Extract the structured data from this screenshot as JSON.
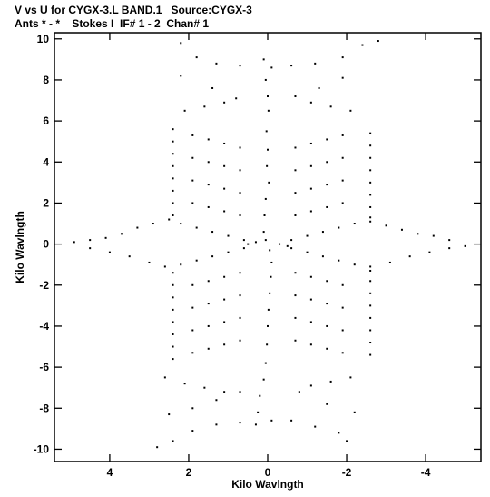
{
  "header": {
    "line1": "V vs U for CYGX-3.L BAND.1   Source:CYGX-3",
    "line2": "Ants * - *    Stokes I  IF# 1 - 2  Chan# 1"
  },
  "chart_data": {
    "type": "scatter",
    "title": "V vs U for CYGX-3.L BAND.1   Source:CYGX-3",
    "subtitle": "Ants * - *    Stokes I  IF# 1 - 2  Chan# 1",
    "xlabel": "Kilo Wavlngth",
    "ylabel": "Kilo Wavlngth",
    "xlim": [
      5.4,
      -5.4
    ],
    "ylim": [
      -10.6,
      10.3
    ],
    "x_reversed": true,
    "x_ticks": [
      4,
      2,
      0,
      -2,
      -4
    ],
    "x_tick_labels": [
      "4",
      "2",
      "0",
      "-2",
      "-4"
    ],
    "y_ticks": [
      10,
      8,
      6,
      4,
      2,
      0,
      -2,
      -4,
      -6,
      -8,
      -10
    ],
    "y_tick_labels": [
      "10",
      "8",
      "6",
      "4",
      "2",
      "0",
      "-2",
      "-4",
      "-6",
      "-8",
      "-10"
    ],
    "grid": false,
    "marker_color": "#000000",
    "series": [
      {
        "values": [
          [
            0.1,
            9.0
          ],
          [
            -0.1,
            8.6
          ],
          [
            0.05,
            8.0
          ],
          [
            0.0,
            7.2
          ],
          [
            -0.02,
            6.5
          ],
          [
            0.03,
            5.5
          ],
          [
            0.0,
            4.6
          ],
          [
            0.02,
            3.8
          ],
          [
            -0.03,
            3.0
          ],
          [
            0.05,
            2.2
          ],
          [
            0.08,
            1.4
          ],
          [
            0.1,
            0.6
          ],
          [
            0.05,
            0.2
          ],
          [
            -0.05,
            -0.3
          ],
          [
            -0.1,
            -0.9
          ],
          [
            -0.08,
            -1.6
          ],
          [
            -0.05,
            -2.4
          ],
          [
            -0.02,
            -3.2
          ],
          [
            0.0,
            -4.0
          ],
          [
            0.02,
            -4.9
          ],
          [
            0.05,
            -5.8
          ],
          [
            0.1,
            -6.6
          ],
          [
            0.2,
            -7.4
          ],
          [
            0.25,
            -8.2
          ],
          [
            0.3,
            -8.8
          ],
          [
            -0.1,
            -8.6
          ],
          [
            2.2,
            9.8
          ],
          [
            1.8,
            9.1
          ],
          [
            1.3,
            8.8
          ],
          [
            0.7,
            8.7
          ],
          [
            2.2,
            8.2
          ],
          [
            1.4,
            7.6
          ],
          [
            0.8,
            7.1
          ],
          [
            -0.6,
            8.7
          ],
          [
            -1.2,
            8.8
          ],
          [
            -1.9,
            9.1
          ],
          [
            -2.4,
            9.7
          ],
          [
            -2.8,
            9.9
          ],
          [
            -0.7,
            7.2
          ],
          [
            -1.3,
            7.6
          ],
          [
            -1.9,
            8.1
          ],
          [
            -2.0,
            -9.6
          ],
          [
            -1.8,
            -9.2
          ],
          [
            -1.2,
            -8.9
          ],
          [
            -0.6,
            -8.6
          ],
          [
            -2.2,
            -8.2
          ],
          [
            -1.5,
            -7.8
          ],
          [
            -0.8,
            -7.2
          ],
          [
            0.7,
            -8.7
          ],
          [
            1.3,
            -8.8
          ],
          [
            1.9,
            -9.1
          ],
          [
            2.4,
            -9.6
          ],
          [
            2.8,
            -9.9
          ],
          [
            0.7,
            -7.2
          ],
          [
            1.3,
            -7.6
          ],
          [
            1.9,
            -8.0
          ],
          [
            2.5,
            -8.3
          ],
          [
            4.9,
            0.1
          ],
          [
            4.5,
            0.2
          ],
          [
            4.1,
            0.3
          ],
          [
            3.7,
            0.5
          ],
          [
            3.3,
            0.8
          ],
          [
            2.9,
            1.0
          ],
          [
            2.5,
            1.2
          ],
          [
            4.5,
            -0.2
          ],
          [
            4.0,
            -0.4
          ],
          [
            3.5,
            -0.6
          ],
          [
            3.0,
            -0.9
          ],
          [
            2.6,
            -1.1
          ],
          [
            2.2,
            1.0
          ],
          [
            1.8,
            0.8
          ],
          [
            1.4,
            0.6
          ],
          [
            1.0,
            0.4
          ],
          [
            0.6,
            0.2
          ],
          [
            2.2,
            -1.0
          ],
          [
            1.8,
            -0.8
          ],
          [
            1.4,
            -0.6
          ],
          [
            1.0,
            -0.4
          ],
          [
            0.6,
            -0.2
          ],
          [
            -5.0,
            -0.1
          ],
          [
            -4.6,
            0.2
          ],
          [
            -4.2,
            0.4
          ],
          [
            -3.8,
            0.5
          ],
          [
            -3.4,
            0.7
          ],
          [
            -3.0,
            0.9
          ],
          [
            -2.6,
            1.1
          ],
          [
            -4.6,
            -0.2
          ],
          [
            -4.1,
            -0.4
          ],
          [
            -3.6,
            -0.6
          ],
          [
            -3.1,
            -0.9
          ],
          [
            -2.6,
            -1.1
          ],
          [
            -2.2,
            1.0
          ],
          [
            -1.8,
            0.8
          ],
          [
            -1.4,
            0.6
          ],
          [
            -1.0,
            0.4
          ],
          [
            -0.6,
            0.2
          ],
          [
            -2.2,
            -1.0
          ],
          [
            -1.8,
            -0.8
          ],
          [
            -1.4,
            -0.6
          ],
          [
            -1.0,
            -0.4
          ],
          [
            -0.6,
            -0.2
          ],
          [
            0.5,
            0.0
          ],
          [
            0.3,
            0.1
          ],
          [
            -0.3,
            0.0
          ],
          [
            -0.5,
            -0.1
          ],
          [
            2.4,
            5.6
          ],
          [
            2.4,
            5.0
          ],
          [
            2.4,
            4.4
          ],
          [
            2.4,
            3.8
          ],
          [
            2.4,
            3.2
          ],
          [
            2.4,
            2.6
          ],
          [
            2.4,
            2.0
          ],
          [
            2.4,
            1.4
          ],
          [
            2.4,
            -1.4
          ],
          [
            2.4,
            -2.0
          ],
          [
            2.4,
            -2.6
          ],
          [
            2.4,
            -3.2
          ],
          [
            2.4,
            -3.8
          ],
          [
            2.4,
            -4.4
          ],
          [
            2.4,
            -5.0
          ],
          [
            2.4,
            -5.6
          ],
          [
            -2.6,
            5.4
          ],
          [
            -2.6,
            4.8
          ],
          [
            -2.6,
            4.2
          ],
          [
            -2.6,
            3.6
          ],
          [
            -2.6,
            3.0
          ],
          [
            -2.6,
            2.4
          ],
          [
            -2.6,
            1.8
          ],
          [
            -2.6,
            1.3
          ],
          [
            -2.6,
            -1.3
          ],
          [
            -2.6,
            -1.8
          ],
          [
            -2.6,
            -2.4
          ],
          [
            -2.6,
            -3.0
          ],
          [
            -2.6,
            -3.6
          ],
          [
            -2.6,
            -4.2
          ],
          [
            -2.6,
            -4.8
          ],
          [
            -2.6,
            -5.4
          ],
          [
            1.9,
            5.3
          ],
          [
            1.5,
            5.1
          ],
          [
            1.1,
            4.9
          ],
          [
            0.7,
            4.7
          ],
          [
            1.9,
            4.2
          ],
          [
            1.5,
            4.0
          ],
          [
            1.1,
            3.8
          ],
          [
            0.7,
            3.6
          ],
          [
            1.9,
            3.1
          ],
          [
            1.5,
            2.9
          ],
          [
            1.1,
            2.7
          ],
          [
            0.7,
            2.5
          ],
          [
            1.9,
            2.0
          ],
          [
            1.5,
            1.8
          ],
          [
            1.1,
            1.6
          ],
          [
            0.7,
            1.4
          ],
          [
            -1.9,
            5.3
          ],
          [
            -1.5,
            5.1
          ],
          [
            -1.1,
            4.9
          ],
          [
            -0.7,
            4.7
          ],
          [
            -1.9,
            4.2
          ],
          [
            -1.5,
            4.0
          ],
          [
            -1.1,
            3.8
          ],
          [
            -0.7,
            3.6
          ],
          [
            -1.9,
            3.1
          ],
          [
            -1.5,
            2.9
          ],
          [
            -1.1,
            2.7
          ],
          [
            -0.7,
            2.5
          ],
          [
            -1.9,
            2.0
          ],
          [
            -1.5,
            1.8
          ],
          [
            -1.1,
            1.6
          ],
          [
            -0.7,
            1.4
          ],
          [
            1.9,
            -5.3
          ],
          [
            1.5,
            -5.1
          ],
          [
            1.1,
            -4.9
          ],
          [
            0.7,
            -4.7
          ],
          [
            1.9,
            -4.2
          ],
          [
            1.5,
            -4.0
          ],
          [
            1.1,
            -3.8
          ],
          [
            0.7,
            -3.6
          ],
          [
            1.9,
            -3.1
          ],
          [
            1.5,
            -2.9
          ],
          [
            1.1,
            -2.7
          ],
          [
            0.7,
            -2.5
          ],
          [
            1.9,
            -2.0
          ],
          [
            1.5,
            -1.8
          ],
          [
            1.1,
            -1.6
          ],
          [
            0.7,
            -1.4
          ],
          [
            -1.9,
            -5.3
          ],
          [
            -1.5,
            -5.1
          ],
          [
            -1.1,
            -4.9
          ],
          [
            -0.7,
            -4.7
          ],
          [
            -1.9,
            -4.2
          ],
          [
            -1.5,
            -4.0
          ],
          [
            -1.1,
            -3.8
          ],
          [
            -0.7,
            -3.6
          ],
          [
            -1.9,
            -3.1
          ],
          [
            -1.5,
            -2.9
          ],
          [
            -1.1,
            -2.7
          ],
          [
            -0.7,
            -2.5
          ],
          [
            -1.9,
            -2.0
          ],
          [
            -1.5,
            -1.8
          ],
          [
            -1.1,
            -1.6
          ],
          [
            -0.7,
            -1.4
          ],
          [
            2.6,
            -6.5
          ],
          [
            2.1,
            -6.8
          ],
          [
            1.6,
            -7.0
          ],
          [
            1.1,
            -7.2
          ],
          [
            -1.1,
            6.9
          ],
          [
            -1.6,
            6.7
          ],
          [
            -2.1,
            6.5
          ],
          [
            1.1,
            6.9
          ],
          [
            1.6,
            6.7
          ],
          [
            2.1,
            6.5
          ],
          [
            -1.1,
            -6.9
          ],
          [
            -1.6,
            -6.7
          ],
          [
            -2.1,
            -6.5
          ]
        ]
      }
    ]
  }
}
